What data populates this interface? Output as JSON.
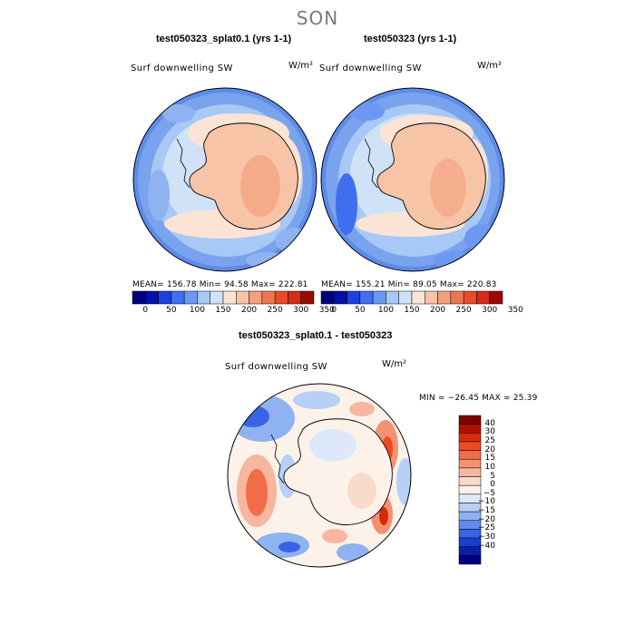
{
  "header": {
    "season": "SON"
  },
  "panels": [
    {
      "title": "test050323_splat0.1 (yrs 1-1)",
      "variable": "Surf downwelling SW",
      "units": "W/m²",
      "stats": {
        "text": "MEAN= 156.78  Min=  94.58  Max= 222.81"
      }
    },
    {
      "title": "test050323 (yrs 1-1)",
      "variable": "Surf downwelling SW",
      "units": "W/m²",
      "stats": {
        "text": "MEAN= 155.21  Min=  89.05  Max= 220.83"
      }
    }
  ],
  "shared_colorbar": {
    "labels": [
      "0",
      "50",
      "100",
      "150",
      "200",
      "250",
      "300",
      "350"
    ],
    "colors": [
      "#00007f",
      "#0010a8",
      "#1d3fe0",
      "#3f6ef0",
      "#6d98f2",
      "#a8c8f5",
      "#cfe2f8",
      "#fbe4d5",
      "#f7c4a7",
      "#f3a17d",
      "#ee7751",
      "#e84c2d",
      "#d42c15",
      "#990a00"
    ]
  },
  "diff_panel": {
    "title": "test050323_splat0.1 - test050323",
    "variable": "Surf downwelling SW",
    "units": "W/m²",
    "stats": {
      "text": "MIN = −26.45 MAX =  25.39"
    },
    "colorbar": {
      "labels": [
        "40",
        "30",
        "25",
        "20",
        "15",
        "10",
        "5",
        "0",
        "−5",
        "−10",
        "−15",
        "−20",
        "−25",
        "−30",
        "−40"
      ],
      "colors": [
        "#800000",
        "#b01000",
        "#d82a0a",
        "#ee4a22",
        "#f16d4a",
        "#f39273",
        "#f6b79e",
        "#f9dbca",
        "#fdf2ea",
        "#dde9fa",
        "#b7d0f6",
        "#8fb2f1",
        "#5f8bec",
        "#3865e4",
        "#1a3fd0",
        "#0a1fa8",
        "#00007f"
      ]
    }
  }
}
